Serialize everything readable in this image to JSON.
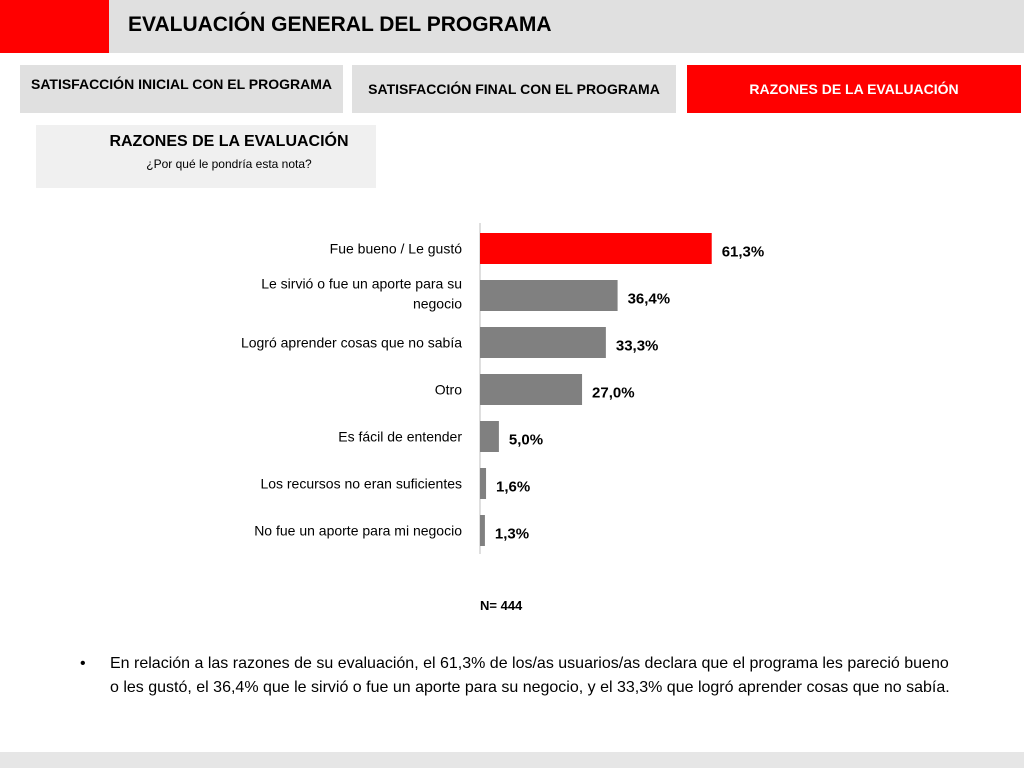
{
  "header": {
    "title": "EVALUACIÓN GENERAL DEL PROGRAMA"
  },
  "tabs": [
    {
      "label": "SATISFACCIÓN INICIAL CON EL PROGRAMA"
    },
    {
      "label": "SATISFACCIÓN FINAL CON EL PROGRAMA"
    },
    {
      "label": "RAZONES DE LA EVALUACIÓN"
    }
  ],
  "section": {
    "title": "RAZONES DE LA EVALUACIÓN",
    "subtitle": "¿Por qué le pondría esta nota?"
  },
  "colors": {
    "accent": "#ff0000",
    "bar_highlight": "#ff0000",
    "bar_default": "#808080",
    "band_grey": "#e0e0e0"
  },
  "chart_data": {
    "type": "bar",
    "orientation": "horizontal",
    "categories": [
      [
        "Fue bueno / Le gustó"
      ],
      [
        "Le sirvió o fue un aporte para su",
        "negocio"
      ],
      [
        "Logró aprender cosas que no sabía"
      ],
      [
        "Otro"
      ],
      [
        "Es fácil de entender"
      ],
      [
        "Los recursos no eran suficientes"
      ],
      [
        "No fue un aporte para mi negocio"
      ]
    ],
    "values": [
      61.3,
      36.4,
      33.3,
      27.0,
      5.0,
      1.6,
      1.3
    ],
    "value_labels": [
      "61,3%",
      "36,4%",
      "33,3%",
      "27,0%",
      "5,0%",
      "1,6%",
      "1,3%"
    ],
    "highlight_index": 0,
    "xlim": [
      0,
      100
    ],
    "grid": false,
    "annotation": "N= 444"
  },
  "bullet": {
    "symbol": "•",
    "text": "En relación a las razones de su evaluación, el 61,3% de los/as usuarios/as declara que el programa les pareció bueno o les gustó, el 36,4% que le sirvió o fue un aporte para su negocio,  y el 33,3% que logró aprender cosas que no sabía."
  }
}
